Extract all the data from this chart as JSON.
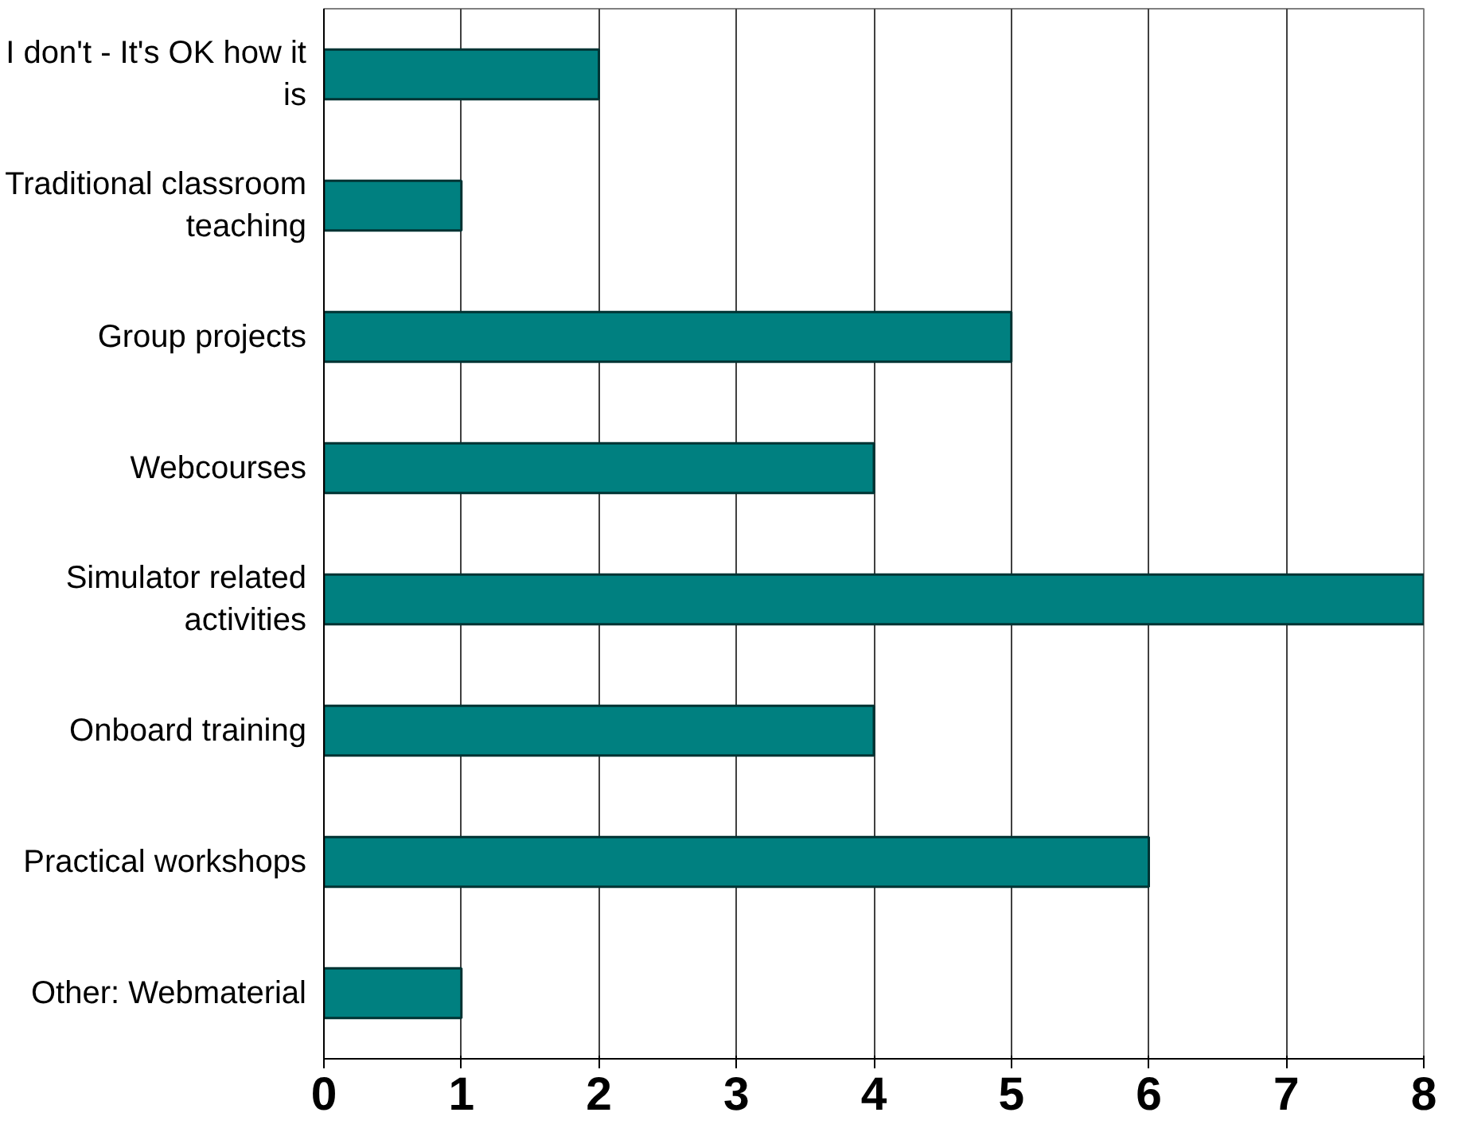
{
  "chart_data": {
    "type": "bar",
    "orientation": "horizontal",
    "categories": [
      "I don't - It's OK how it is",
      "Traditional classroom teaching",
      "Group projects",
      "Webcourses",
      "Simulator related activities",
      "Onboard training",
      "Practical workshops",
      "Other: Webmaterial"
    ],
    "values": [
      2,
      1,
      5,
      4,
      8,
      4,
      6,
      1
    ],
    "color": "#008080",
    "xlim": [
      0,
      8
    ],
    "xticks": [
      0,
      1,
      2,
      3,
      4,
      5,
      6,
      7,
      8
    ],
    "grid": "x"
  }
}
